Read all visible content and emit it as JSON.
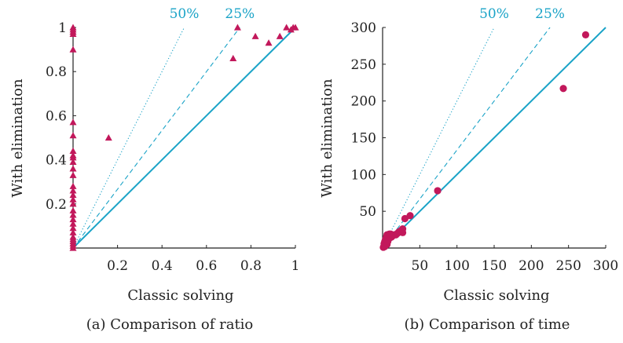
{
  "colors": {
    "reference": "#1aa3c7",
    "points": "#c2185b",
    "axis": "#222222"
  },
  "chart_data": [
    {
      "type": "scatter",
      "caption": "(a) Comparison of ratio",
      "xlabel": "Classic solving",
      "ylabel": "With elimination",
      "xlim": [
        0,
        1
      ],
      "ylim": [
        0,
        1
      ],
      "x_ticks": [
        0.2,
        0.4,
        0.6,
        0.8,
        1
      ],
      "y_ticks": [
        0.2,
        0.4,
        0.6,
        0.8,
        1
      ],
      "x_tick_labels": [
        "0.2",
        "0.4",
        "0.6",
        "0.8",
        "1"
      ],
      "y_tick_labels": [
        "0.2",
        "0.4",
        "0.6",
        "0.8",
        "1"
      ],
      "marker": "triangle",
      "grid": false,
      "reference_lines": [
        {
          "label": "",
          "slope": 1,
          "style": "solid"
        },
        {
          "label": "25%",
          "slope": 1.333,
          "style": "dashed"
        },
        {
          "label": "50%",
          "slope": 2,
          "style": "dotted"
        }
      ],
      "points": [
        [
          0,
          0
        ],
        [
          0,
          0.01
        ],
        [
          0,
          0.02
        ],
        [
          0,
          0.03
        ],
        [
          0,
          0.04
        ],
        [
          0,
          0.05
        ],
        [
          0,
          0.07
        ],
        [
          0,
          0.09
        ],
        [
          0,
          0.11
        ],
        [
          0,
          0.13
        ],
        [
          0,
          0.15
        ],
        [
          0,
          0.17
        ],
        [
          0,
          0.2
        ],
        [
          0,
          0.22
        ],
        [
          0,
          0.24
        ],
        [
          0,
          0.26
        ],
        [
          0,
          0.28
        ],
        [
          0,
          0.33
        ],
        [
          0,
          0.36
        ],
        [
          0,
          0.39
        ],
        [
          0,
          0.41
        ],
        [
          0,
          0.42
        ],
        [
          0,
          0.44
        ],
        [
          0,
          0.51
        ],
        [
          0,
          0.57
        ],
        [
          0,
          0.9
        ],
        [
          0,
          0.97
        ],
        [
          0,
          0.98
        ],
        [
          0,
          0.99
        ],
        [
          0,
          1.0
        ],
        [
          0.16,
          0.5
        ],
        [
          0.72,
          0.86
        ],
        [
          0.74,
          1.0
        ],
        [
          0.82,
          0.96
        ],
        [
          0.88,
          0.93
        ],
        [
          0.93,
          0.96
        ],
        [
          0.96,
          1.0
        ],
        [
          0.98,
          0.99
        ],
        [
          0.99,
          1.0
        ],
        [
          1.0,
          1.0
        ]
      ]
    },
    {
      "type": "scatter",
      "caption": "(b) Comparison of time",
      "xlabel": "Classic solving",
      "ylabel": "With elimination",
      "xlim": [
        0,
        300
      ],
      "ylim": [
        0,
        300
      ],
      "x_ticks": [
        50,
        100,
        150,
        200,
        250,
        300
      ],
      "y_ticks": [
        50,
        100,
        150,
        200,
        250,
        300
      ],
      "x_tick_labels": [
        "50",
        "100",
        "150",
        "200",
        "250",
        "300"
      ],
      "y_tick_labels": [
        "50",
        "100",
        "150",
        "200",
        "250",
        "300"
      ],
      "marker": "circle",
      "grid": false,
      "reference_lines": [
        {
          "label": "",
          "slope": 1,
          "style": "solid"
        },
        {
          "label": "25%",
          "slope": 1.333,
          "style": "dashed"
        },
        {
          "label": "50%",
          "slope": 2,
          "style": "dotted"
        }
      ],
      "points": [
        [
          1,
          1
        ],
        [
          2,
          3
        ],
        [
          3,
          2
        ],
        [
          2,
          6
        ],
        [
          4,
          4
        ],
        [
          5,
          7
        ],
        [
          3,
          9
        ],
        [
          6,
          5
        ],
        [
          4,
          12
        ],
        [
          7,
          9
        ],
        [
          5,
          15
        ],
        [
          8,
          12
        ],
        [
          6,
          18
        ],
        [
          10,
          14
        ],
        [
          9,
          19
        ],
        [
          12,
          15
        ],
        [
          11,
          19
        ],
        [
          14,
          17
        ],
        [
          16,
          18
        ],
        [
          18,
          18
        ],
        [
          20,
          20
        ],
        [
          22,
          22
        ],
        [
          25,
          24
        ],
        [
          27,
          26
        ],
        [
          27,
          21
        ],
        [
          30,
          40
        ],
        [
          37,
          44
        ],
        [
          74,
          78
        ],
        [
          243,
          217
        ],
        [
          273,
          290
        ]
      ]
    }
  ]
}
